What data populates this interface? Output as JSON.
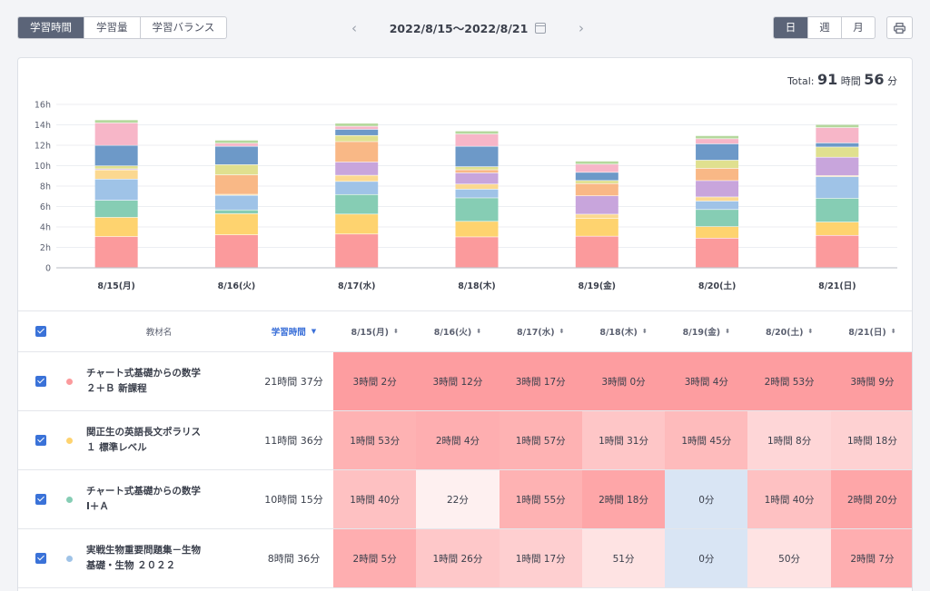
{
  "view_tabs": [
    "学習時間",
    "学習量",
    "学習バランス"
  ],
  "date_range": "2022/8/15〜2022/8/21",
  "prev_arrow": "‹",
  "next_arrow": "›",
  "period_tabs": [
    "日",
    "週",
    "月"
  ],
  "print_icon": "printer-icon",
  "total": {
    "label": "Total:",
    "hours": "91",
    "hours_unit": "時間",
    "minutes": "56",
    "minutes_unit": "分"
  },
  "chart_data": {
    "type": "bar",
    "stacked": true,
    "categories": [
      "8/15(月)",
      "8/16(火)",
      "8/17(水)",
      "8/18(木)",
      "8/19(金)",
      "8/20(土)",
      "8/21(日)"
    ],
    "ylim": [
      0,
      16
    ],
    "yticks": [
      "0",
      "2h",
      "4h",
      "6h",
      "8h",
      "10h",
      "12h",
      "14h",
      "16h"
    ],
    "grid": true,
    "series": [
      {
        "color": "#fb9a9c",
        "values": [
          3.03,
          3.2,
          3.28,
          3.0,
          3.07,
          2.88,
          3.15
        ]
      },
      {
        "color": "#fed36f",
        "values": [
          1.88,
          2.07,
          1.95,
          1.52,
          1.75,
          1.13,
          1.3
        ]
      },
      {
        "color": "#86cdb4",
        "values": [
          1.67,
          0.37,
          1.92,
          2.3,
          0.0,
          1.67,
          2.33
        ]
      },
      {
        "color": "#9fc3e7",
        "values": [
          2.08,
          1.43,
          1.28,
          0.85,
          0.0,
          0.83,
          2.12
        ]
      },
      {
        "color": "#fbd890",
        "values": [
          0.9,
          0.1,
          0.6,
          0.5,
          0.4,
          0.4,
          0.1
        ]
      },
      {
        "color": "#c8a5dc",
        "values": [
          0.1,
          0.0,
          1.3,
          1.1,
          1.8,
          1.6,
          1.8
        ]
      },
      {
        "color": "#f9b886",
        "values": [
          0.0,
          1.9,
          2.0,
          0.3,
          1.2,
          1.2,
          0.0
        ]
      },
      {
        "color": "#e0e08f",
        "values": [
          0.3,
          1.0,
          0.6,
          0.3,
          0.3,
          0.8,
          1.0
        ]
      },
      {
        "color": "#6d99c8",
        "values": [
          2.0,
          1.8,
          0.6,
          2.0,
          0.8,
          1.6,
          0.4
        ]
      },
      {
        "color": "#f7b6c8",
        "values": [
          2.2,
          0.3,
          0.3,
          1.2,
          0.8,
          0.5,
          1.5
        ]
      },
      {
        "color": "#b5d89d",
        "values": [
          0.3,
          0.3,
          0.3,
          0.3,
          0.3,
          0.3,
          0.3
        ]
      }
    ]
  },
  "table": {
    "header": {
      "name": "教材名",
      "total": "学習時間",
      "sort_desc": "▼",
      "sort_both": "⬍"
    },
    "days": [
      "8/15(月)",
      "8/16(火)",
      "8/17(水)",
      "8/18(木)",
      "8/19(金)",
      "8/20(土)",
      "8/21(日)"
    ],
    "rows": [
      {
        "color": "#fb9a9c",
        "name1": "チャート式基礎からの数学",
        "name2": "２＋Ｂ 新課程",
        "total": "21時間 37分",
        "cells": [
          "3時間 2分",
          "3時間 12分",
          "3時間 17分",
          "3時間 0分",
          "3時間 4分",
          "2時間 53分",
          "3時間 9分"
        ],
        "bg": [
          "#fd9da0",
          "#fd9da0",
          "#fd9da0",
          "#fd9da0",
          "#fd9da0",
          "#fd9da0",
          "#fd9da0"
        ]
      },
      {
        "color": "#fed36f",
        "name1": "関正生の英語長文ポラリス",
        "name2": "１ 標準レベル",
        "total": "11時間 36分",
        "cells": [
          "1時間 53分",
          "2時間 4分",
          "1時間 57分",
          "1時間 31分",
          "1時間 45分",
          "1時間 8分",
          "1時間 18分"
        ],
        "bg": [
          "#feb2b3",
          "#feaeb0",
          "#feb2b3",
          "#fec6c7",
          "#febbbc",
          "#fed6d7",
          "#fed1d2"
        ]
      },
      {
        "color": "#86cdb4",
        "name1": "チャート式基礎からの数学",
        "name2": "Ⅰ＋Ａ",
        "total": "10時間 15分",
        "cells": [
          "1時間 40分",
          "22分",
          "1時間 55分",
          "2時間 18分",
          "0分",
          "1時間 40分",
          "2時間 20分"
        ],
        "bg": [
          "#fec1c2",
          "#fef0f0",
          "#feb2b3",
          "#fea6a8",
          "#d9e5f4",
          "#fec1c2",
          "#fea6a8"
        ]
      },
      {
        "color": "#9fc3e7",
        "name1": "実戦生物重要問題集－生物",
        "name2": "基礎・生物 ２０２２",
        "total": "8時間 36分",
        "cells": [
          "2時間 5分",
          "1時間 26分",
          "1時間 17分",
          "51分",
          "0分",
          "50分",
          "2時間 7分"
        ],
        "bg": [
          "#feaeb0",
          "#fec8c9",
          "#fecfd0",
          "#fee3e3",
          "#d9e5f4",
          "#fee3e3",
          "#feaeb0"
        ]
      }
    ]
  }
}
